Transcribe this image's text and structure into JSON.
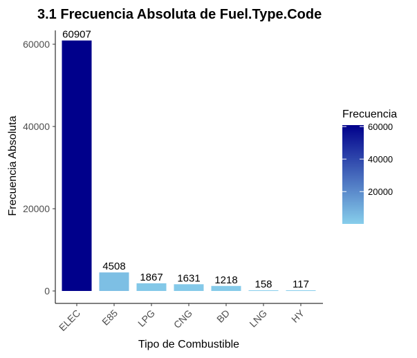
{
  "chart_data": {
    "type": "bar",
    "title": "3.1 Frecuencia Absoluta de Fuel.Type.Code",
    "xlabel": "Tipo de Combustible",
    "ylabel": "Frecuencia Absoluta",
    "categories": [
      "ELEC",
      "E85",
      "LPG",
      "CNG",
      "BD",
      "LNG",
      "HY"
    ],
    "values": [
      60907,
      4508,
      1867,
      1631,
      1218,
      158,
      117
    ],
    "data_labels": [
      "60907",
      "4508",
      "1867",
      "1631",
      "1218",
      "158",
      "117"
    ],
    "ylim": [
      0,
      63000
    ],
    "yticks": [
      0,
      20000,
      40000,
      60000
    ],
    "ytick_labels": [
      "0",
      "20000",
      "40000",
      "60000"
    ],
    "grid": false,
    "color_scale": {
      "low": "#87ceeb",
      "high": "#00008b",
      "min": 117,
      "max": 60907
    },
    "legend": {
      "title": "Frecuencia",
      "placement": "right",
      "ticks": [
        20000,
        40000,
        60000
      ],
      "tick_labels": [
        "20000",
        "40000",
        "60000"
      ]
    }
  }
}
